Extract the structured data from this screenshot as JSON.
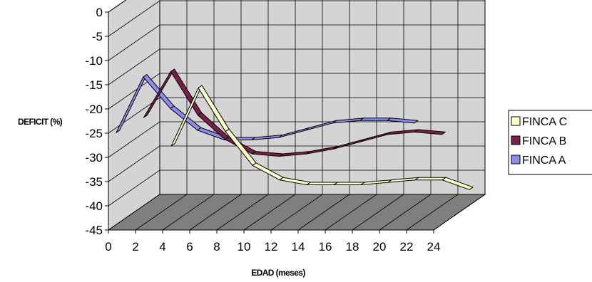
{
  "chart_data": {
    "type": "line",
    "title": "",
    "xlabel": "EDAD (meses)",
    "ylabel": "DEFICIT (%)",
    "xlim": [
      0,
      24
    ],
    "ylim": [
      -45,
      0
    ],
    "x_ticks": [
      "0",
      "2",
      "4",
      "6",
      "8",
      "10",
      "12",
      "14",
      "16",
      "18",
      "20",
      "22",
      "24"
    ],
    "y_ticks": [
      "0",
      "-5",
      "-10",
      "-15",
      "-20",
      "-25",
      "-30",
      "-35",
      "-40",
      "-45"
    ],
    "grid": true,
    "legend_position": "right",
    "series": [
      {
        "name": "FINCA C",
        "color": "#ffffcc",
        "x": [
          0,
          2,
          4,
          6,
          8,
          10,
          12,
          14,
          16,
          18,
          20,
          22
        ],
        "y": [
          -32,
          -20,
          -29,
          -36,
          -39,
          -40,
          -40,
          -40,
          -39.5,
          -39,
          -39,
          -41
        ]
      },
      {
        "name": "FINCA B",
        "color": "#7a1f4a",
        "x": [
          0,
          2,
          4,
          6,
          8,
          10,
          12,
          14,
          16,
          18,
          20,
          22
        ],
        "y": [
          -24.5,
          -15,
          -24,
          -29,
          -32,
          -32.5,
          -32,
          -31,
          -29.5,
          -28,
          -27.5,
          -28
        ]
      },
      {
        "name": "FINCA A",
        "color": "#8c8cf0",
        "x": [
          0,
          2,
          4,
          6,
          8,
          10,
          12,
          14,
          16,
          18,
          20,
          22
        ],
        "y": [
          -26,
          -14.5,
          -21,
          -25.5,
          -27.5,
          -27.5,
          -27,
          -25.5,
          -24,
          -23.5,
          -23.5,
          -24
        ]
      }
    ]
  }
}
